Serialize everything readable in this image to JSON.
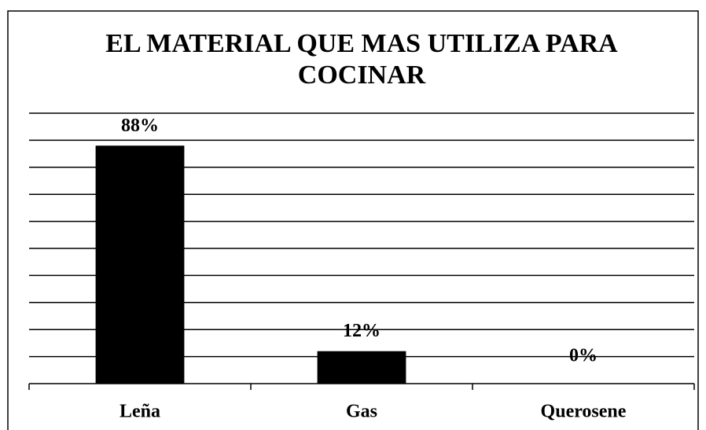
{
  "chart_data": {
    "type": "bar",
    "title": [
      "EL MATERIAL  QUE MAS UTILIZA PARA",
      "COCINAR"
    ],
    "categories": [
      "Leña",
      "Gas",
      "Querosene"
    ],
    "values": [
      88,
      12,
      0
    ],
    "value_labels": [
      "88%",
      "12%",
      "0%"
    ],
    "color": "#000000",
    "ylim": [
      0,
      100
    ],
    "yticks": [
      10,
      20,
      30,
      40,
      50,
      60,
      70,
      80,
      90,
      100
    ],
    "grid": true
  }
}
